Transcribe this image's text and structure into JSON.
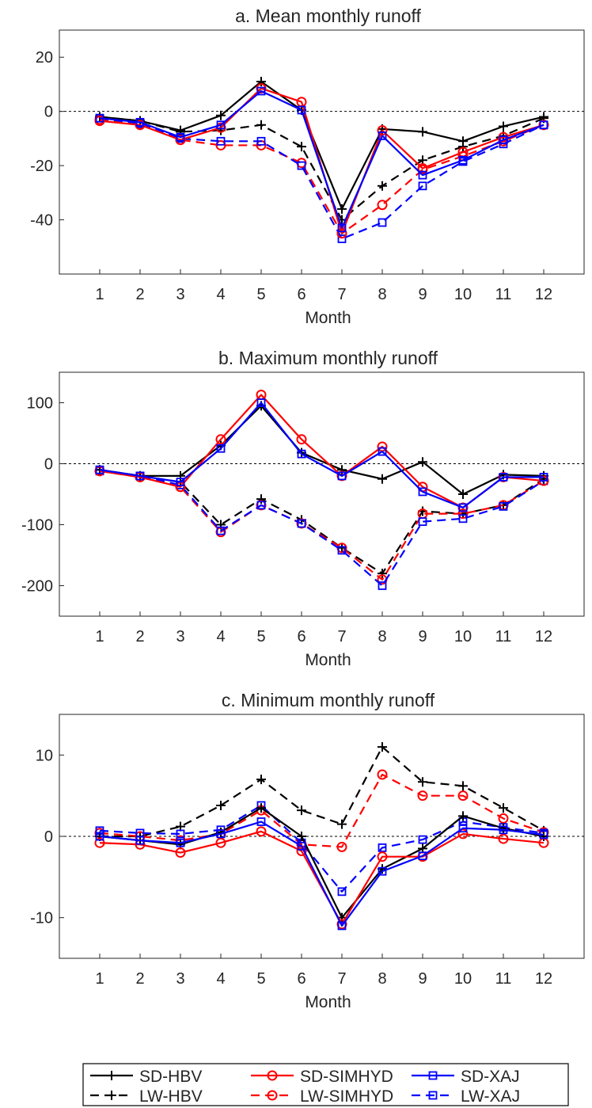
{
  "figure": {
    "legend": [
      {
        "label": "SD-HBV",
        "color": "#000000",
        "dash": "solid",
        "marker": "plus"
      },
      {
        "label": "SD-SIMHYD",
        "color": "#ff0000",
        "dash": "solid",
        "marker": "circle"
      },
      {
        "label": "SD-XAJ",
        "color": "#0000ff",
        "dash": "solid",
        "marker": "square"
      },
      {
        "label": "LW-HBV",
        "color": "#000000",
        "dash": "dashed",
        "marker": "plus"
      },
      {
        "label": "LW-SIMHYD",
        "color": "#ff0000",
        "dash": "dashed",
        "marker": "circle"
      },
      {
        "label": "LW-XAJ",
        "color": "#0000ff",
        "dash": "dashed",
        "marker": "square"
      }
    ]
  },
  "chart_data": [
    {
      "type": "line",
      "title": "a. Mean monthly runoff",
      "xlabel": "Month",
      "ylabel": "",
      "xlim": [
        0,
        13
      ],
      "ylim": [
        -60,
        30
      ],
      "x": [
        1,
        2,
        3,
        4,
        5,
        6,
        7,
        8,
        9,
        10,
        11,
        12
      ],
      "yticks": [
        20,
        0,
        -20,
        -40
      ],
      "ytick_labels": [
        "20",
        "0",
        "-20",
        "-40"
      ],
      "xtick_labels": [
        "1",
        "2",
        "3",
        "4",
        "5",
        "6",
        "7",
        "8",
        "9",
        "10",
        "11",
        "12"
      ],
      "zero_line": true,
      "series": [
        {
          "name": "SD-HBV",
          "values": [
            -2,
            -3.5,
            -7,
            -1.5,
            11,
            0.5,
            -36,
            -6.5,
            -7.5,
            -11,
            -5.5,
            -2
          ]
        },
        {
          "name": "SD-SIMHYD",
          "values": [
            -3.5,
            -5,
            -10.5,
            -6,
            8.5,
            3.5,
            -45,
            -7,
            -21,
            -15,
            -9.5,
            -5
          ]
        },
        {
          "name": "SD-XAJ",
          "values": [
            -2.5,
            -4,
            -9.5,
            -5,
            7.5,
            0.5,
            -43,
            -9,
            -23.5,
            -18,
            -10.5,
            -5
          ]
        },
        {
          "name": "LW-HBV",
          "values": [
            -2,
            -3.5,
            -7.5,
            -7,
            -5,
            -13,
            -40,
            -27.5,
            -18,
            -13,
            -9,
            -2.5
          ]
        },
        {
          "name": "LW-SIMHYD",
          "values": [
            -3,
            -4.5,
            -10.5,
            -12.5,
            -12.5,
            -19,
            -45,
            -34.5,
            -21.5,
            -16.5,
            -11,
            -5
          ]
        },
        {
          "name": "LW-XAJ",
          "values": [
            -2.5,
            -4.5,
            -10,
            -11,
            -11,
            -20,
            -47,
            -41,
            -27.5,
            -18.5,
            -12,
            -5
          ]
        }
      ]
    },
    {
      "type": "line",
      "title": "b. Maximum monthly runoff",
      "xlabel": "Month",
      "ylabel": "",
      "xlim": [
        0,
        13
      ],
      "ylim": [
        -250,
        150
      ],
      "x": [
        1,
        2,
        3,
        4,
        5,
        6,
        7,
        8,
        9,
        10,
        11,
        12
      ],
      "yticks": [
        100,
        0,
        -100,
        -200
      ],
      "ytick_labels": [
        "100",
        "0",
        "-100",
        "-200"
      ],
      "xtick_labels": [
        "1",
        "2",
        "3",
        "4",
        "5",
        "6",
        "7",
        "8",
        "9",
        "10",
        "11",
        "12"
      ],
      "zero_line": true,
      "series": [
        {
          "name": "SD-HBV",
          "values": [
            -10,
            -20,
            -20,
            30,
            95,
            18,
            -10,
            -25,
            3,
            -50,
            -18,
            -20
          ]
        },
        {
          "name": "SD-SIMHYD",
          "values": [
            -12,
            -22,
            -38,
            40,
            113,
            40,
            -20,
            28,
            -38,
            -72,
            -22,
            -28
          ]
        },
        {
          "name": "SD-XAJ",
          "values": [
            -10,
            -20,
            -30,
            25,
            100,
            16,
            -20,
            20,
            -46,
            -72,
            -22,
            -22
          ]
        },
        {
          "name": "LW-HBV",
          "values": [
            -10,
            -20,
            -30,
            -100,
            -58,
            -92,
            -138,
            -180,
            -78,
            -82,
            -68,
            -25
          ]
        },
        {
          "name": "LW-SIMHYD",
          "values": [
            -12,
            -22,
            -38,
            -112,
            -68,
            -98,
            -138,
            -190,
            -82,
            -82,
            -68,
            -28
          ]
        },
        {
          "name": "LW-XAJ",
          "values": [
            -12,
            -20,
            -35,
            -110,
            -68,
            -98,
            -142,
            -200,
            -95,
            -90,
            -70,
            -28
          ]
        }
      ]
    },
    {
      "type": "line",
      "title": "c. Minimum monthly runoff",
      "xlabel": "Month",
      "ylabel": "",
      "xlim": [
        0,
        13
      ],
      "ylim": [
        -15,
        15
      ],
      "x": [
        1,
        2,
        3,
        4,
        5,
        6,
        7,
        8,
        9,
        10,
        11,
        12
      ],
      "yticks": [
        10,
        0,
        -10
      ],
      "ytick_labels": [
        "10",
        "0",
        "-10"
      ],
      "xtick_labels": [
        "1",
        "2",
        "3",
        "4",
        "5",
        "6",
        "7",
        "8",
        "9",
        "10",
        "11",
        "12"
      ],
      "zero_line": true,
      "series": [
        {
          "name": "SD-HBV",
          "values": [
            0,
            -0.5,
            -1,
            0.5,
            3.5,
            0,
            -10,
            -4,
            -1.5,
            2.5,
            1,
            0
          ]
        },
        {
          "name": "SD-SIMHYD",
          "values": [
            -0.8,
            -1,
            -2,
            -0.8,
            0.6,
            -1.8,
            -10.8,
            -2.5,
            -2.5,
            0.3,
            -0.3,
            -0.8
          ]
        },
        {
          "name": "SD-XAJ",
          "values": [
            0,
            -0.5,
            -0.8,
            0.3,
            1.8,
            -1.2,
            -11,
            -4.3,
            -2.4,
            1,
            0.8,
            0.2
          ]
        },
        {
          "name": "LW-HBV",
          "values": [
            0,
            0,
            1.2,
            3.8,
            7,
            3.2,
            1.5,
            11,
            6.7,
            6.2,
            3.5,
            0.7
          ]
        },
        {
          "name": "LW-SIMHYD",
          "values": [
            0.4,
            0,
            -0.5,
            0.3,
            3.2,
            -1,
            -1.3,
            7.6,
            5,
            5,
            2.2,
            0.5
          ]
        },
        {
          "name": "LW-XAJ",
          "values": [
            0.7,
            0.4,
            0.3,
            0.8,
            3.8,
            -0.8,
            -6.8,
            -1.4,
            -0.4,
            1.8,
            1.1,
            0.4
          ]
        }
      ]
    }
  ]
}
